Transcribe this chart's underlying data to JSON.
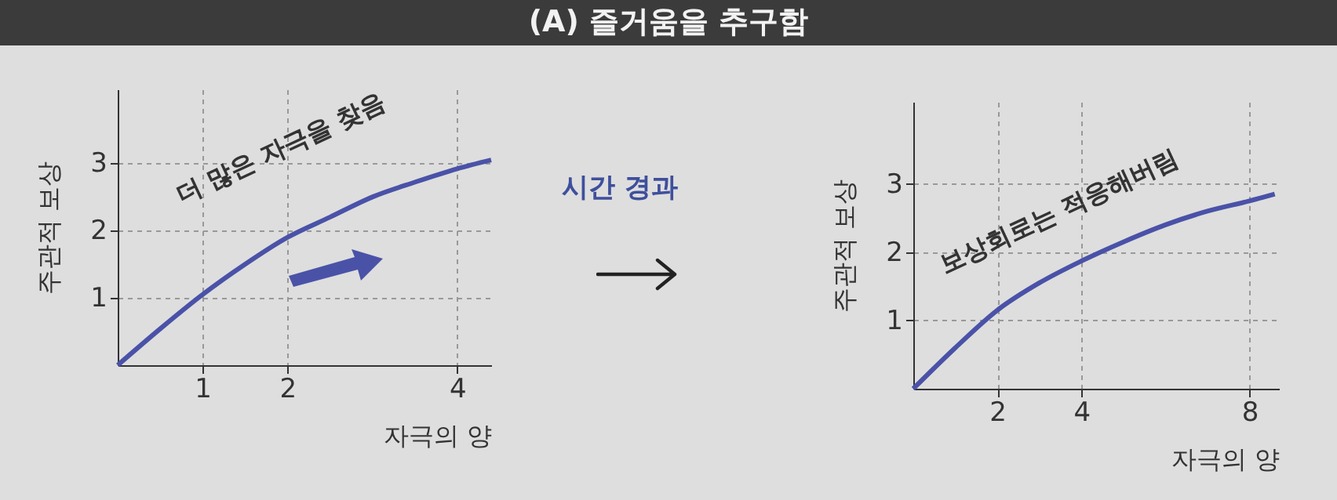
{
  "chart_data": [
    {
      "type": "other",
      "title": "(A) 즐거움을 추구함",
      "annotations": [
        "시간 경과"
      ]
    },
    {
      "type": "line",
      "xlabel": "자극의 양",
      "ylabel": "주관적 보상",
      "annotations": [
        "더 많은 자극을 찾음"
      ],
      "x": [
        0,
        0.5,
        1,
        1.5,
        2,
        2.5,
        3,
        3.5,
        4,
        4.4
      ],
      "series": [
        {
          "color": "#4a52a8",
          "values": [
            0,
            0.54,
            1.05,
            1.5,
            1.9,
            2.2,
            2.5,
            2.72,
            2.92,
            3.05
          ]
        }
      ],
      "xlim": [
        0,
        4.4
      ],
      "ylim": [
        0,
        4.1
      ],
      "xticks": [
        1,
        2,
        4
      ],
      "yticks": [
        1,
        2,
        3
      ],
      "grid": true
    },
    {
      "type": "line",
      "xlabel": "자극의 양",
      "ylabel": "주관적 보상",
      "annotations": [
        "보상회로는 적응해버림"
      ],
      "x": [
        0,
        1,
        2,
        3,
        4,
        5,
        6,
        7,
        8,
        8.6
      ],
      "series": [
        {
          "color": "#4a52a8",
          "values": [
            0,
            0.6,
            1.15,
            1.55,
            1.87,
            2.15,
            2.4,
            2.6,
            2.75,
            2.85
          ]
        }
      ],
      "xlim": [
        0,
        8.7
      ],
      "ylim": [
        0,
        4.2
      ],
      "xticks": [
        2,
        4,
        8
      ],
      "yticks": [
        1,
        2,
        3
      ],
      "grid": true
    }
  ]
}
